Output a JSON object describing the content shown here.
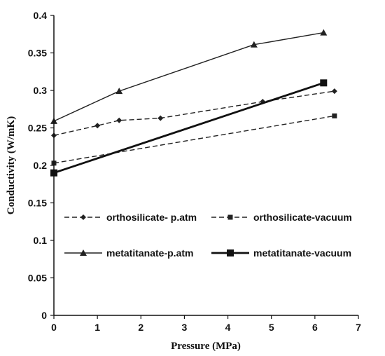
{
  "chart_data": {
    "type": "line",
    "xlabel": "Pressure (MPa)",
    "ylabel": "Conductivity (W/mK)",
    "xlim": [
      0,
      7
    ],
    "ylim": [
      0,
      0.4
    ],
    "x_ticks": [
      "0",
      "1",
      "2",
      "3",
      "4",
      "5",
      "6",
      "7"
    ],
    "y_ticks": [
      "0",
      "0.05",
      "0.1",
      "0.15",
      "0.2",
      "0.25",
      "0.3",
      "0.35",
      "0.4"
    ],
    "grid": false,
    "legend_position": "inside-bottom",
    "series": [
      {
        "name": "orthosilicate- p.atm",
        "marker": "diamond",
        "line_style": "dashed",
        "color": "#222222",
        "x": [
          0,
          1.0,
          1.5,
          2.45,
          4.8,
          6.45
        ],
        "y": [
          0.24,
          0.253,
          0.26,
          0.263,
          0.285,
          0.299
        ]
      },
      {
        "name": "orthosilicate-vacuum",
        "marker": "square-small",
        "line_style": "dashed",
        "color": "#222222",
        "x": [
          0,
          6.45
        ],
        "y": [
          0.203,
          0.266
        ]
      },
      {
        "name": "metatitanate-p.atm",
        "marker": "triangle",
        "line_style": "solid",
        "color": "#222222",
        "x": [
          0,
          1.5,
          4.6,
          6.2
        ],
        "y": [
          0.259,
          0.299,
          0.361,
          0.377
        ]
      },
      {
        "name": "metatitanate-vacuum",
        "marker": "square-large",
        "line_style": "solid-thick",
        "color": "#111111",
        "x": [
          0,
          6.2
        ],
        "y": [
          0.19,
          0.31
        ]
      }
    ]
  }
}
